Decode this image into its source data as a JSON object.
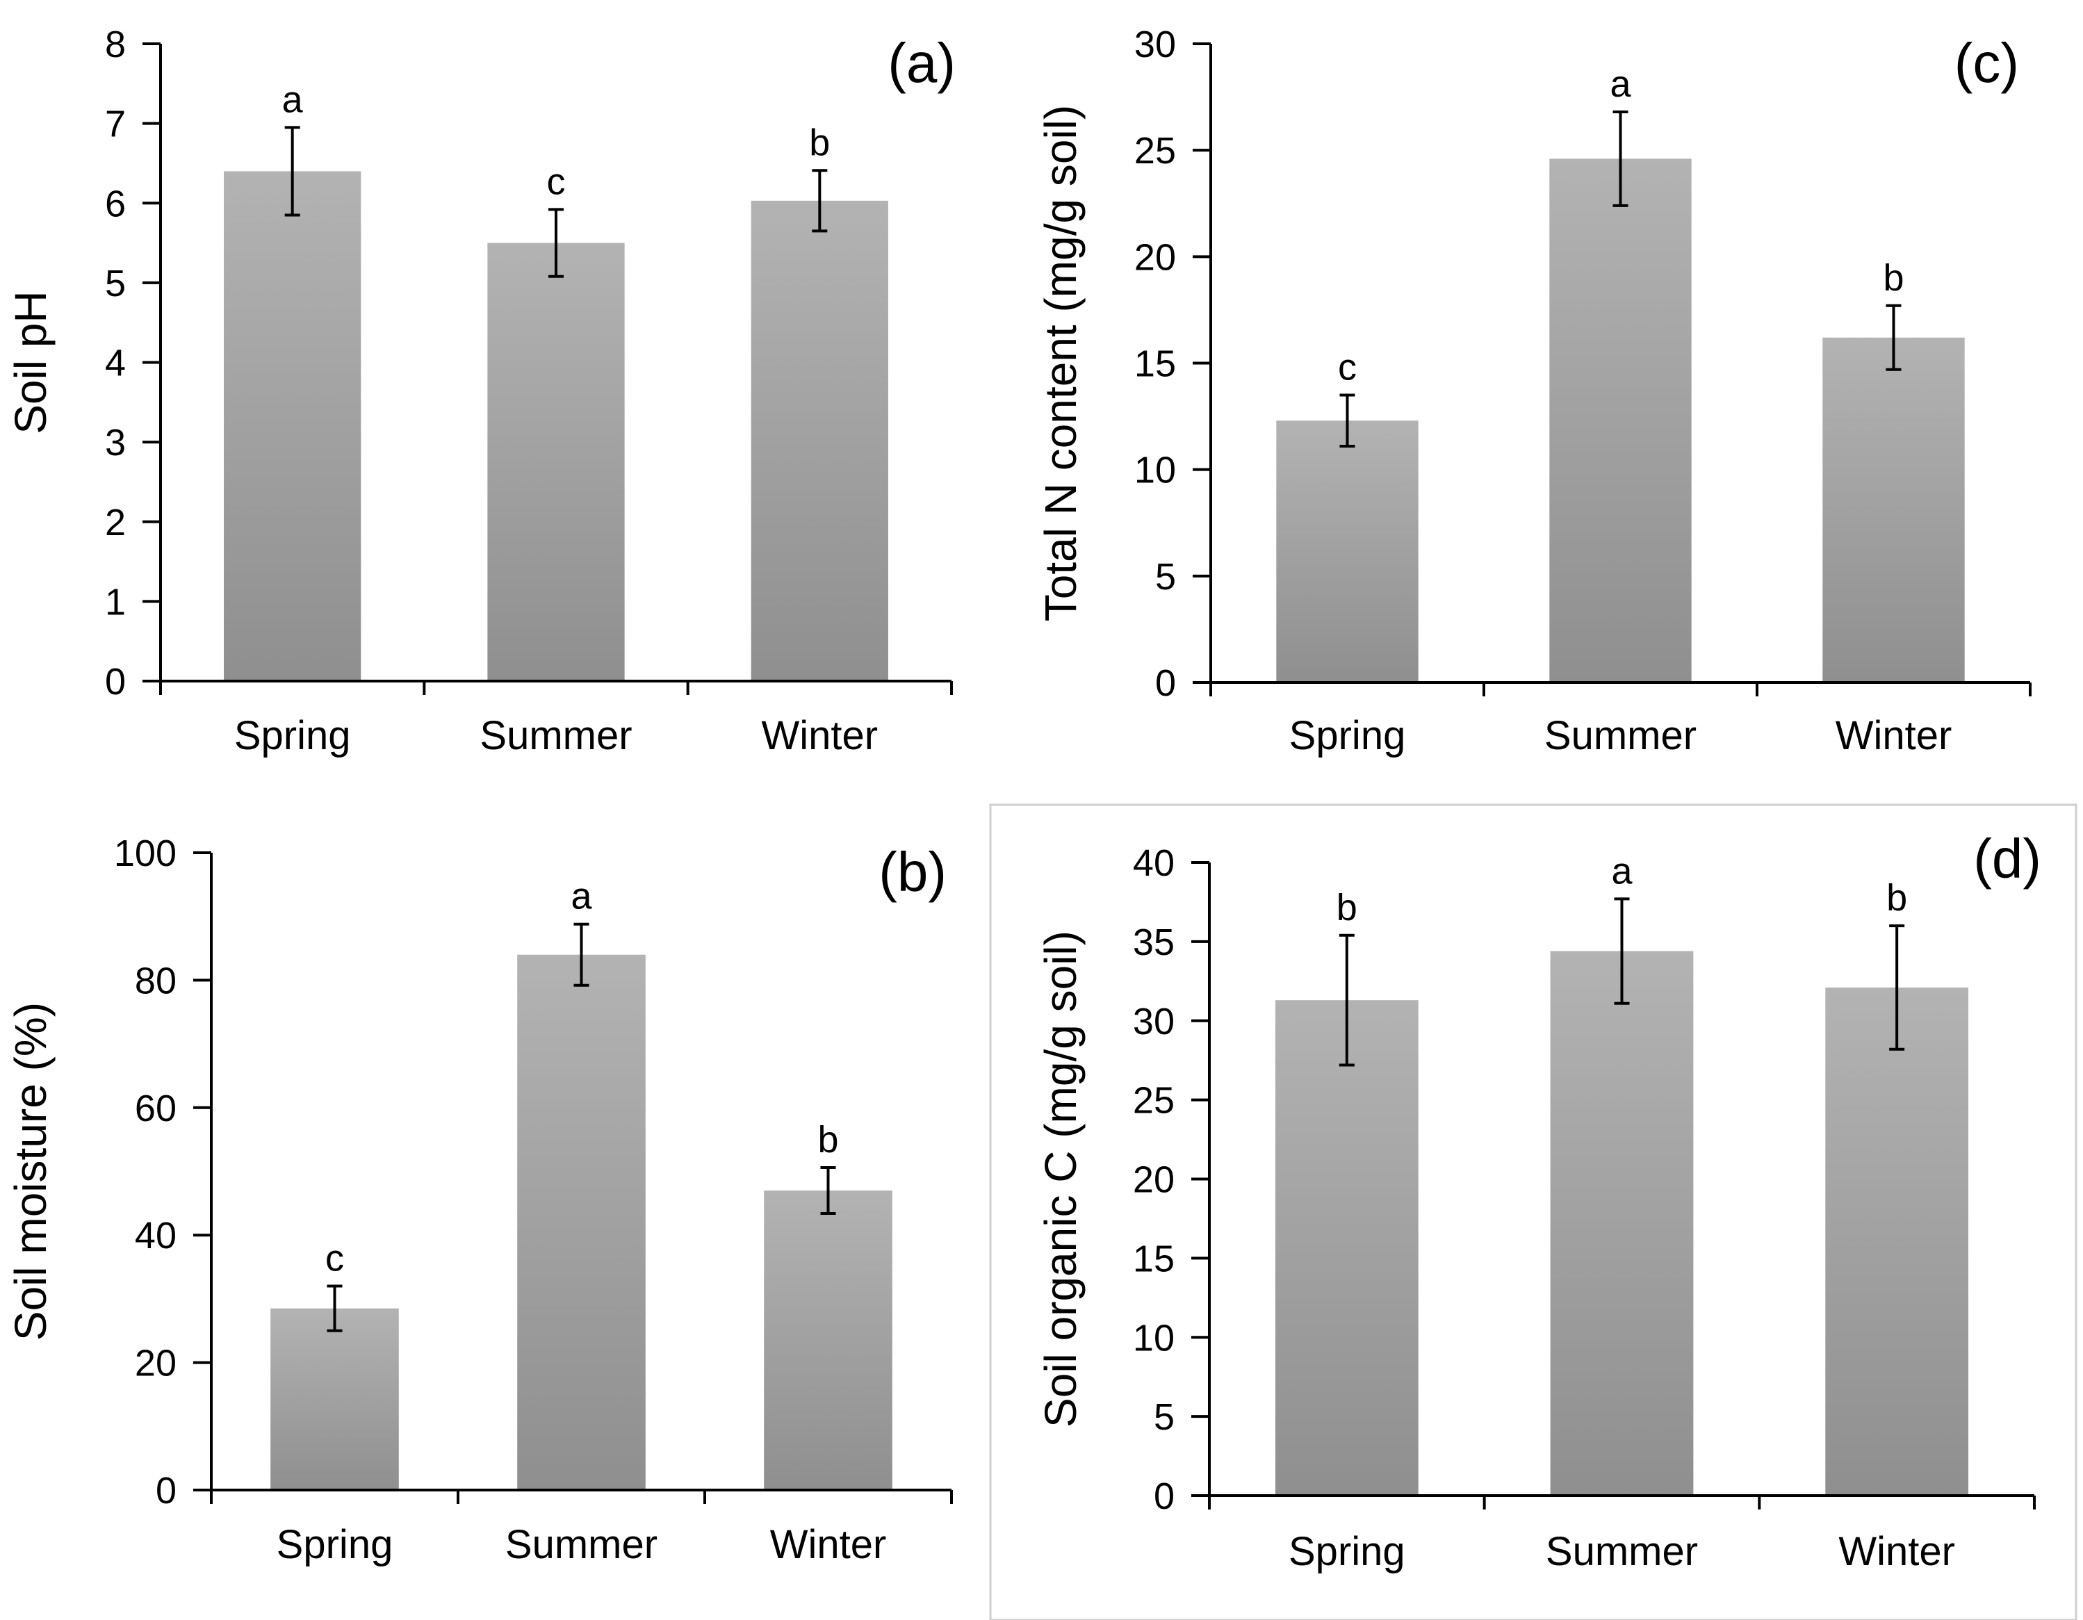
{
  "figure": {
    "background": "#ffffff",
    "bar_color_top": "#b3b3b3",
    "bar_color_bottom": "#8f8f8f",
    "axis_color": "#000000"
  },
  "chart_data": [
    {
      "id": "a",
      "type": "bar",
      "panel_label": "(a)",
      "categories": [
        "Spring",
        "Summer",
        "Winter"
      ],
      "values": [
        6.4,
        5.5,
        6.03
      ],
      "error": [
        0.55,
        0.42,
        0.38
      ],
      "significance": [
        "a",
        "c",
        "b"
      ],
      "ylabel": "Soil pH",
      "xlabel": "",
      "ylim": [
        0,
        8
      ],
      "yticks": [
        0,
        1,
        2,
        3,
        4,
        5,
        6,
        7,
        8
      ],
      "grid": false,
      "legend": "none"
    },
    {
      "id": "c",
      "type": "bar",
      "panel_label": "(c)",
      "categories": [
        "Spring",
        "Summer",
        "Winter"
      ],
      "values": [
        12.3,
        24.6,
        16.2
      ],
      "error": [
        1.2,
        2.2,
        1.5
      ],
      "significance": [
        "c",
        "a",
        "b"
      ],
      "ylabel": "Total N content (mg/g soil)",
      "xlabel": "",
      "ylim": [
        0,
        30
      ],
      "yticks": [
        0,
        5,
        10,
        15,
        20,
        25,
        30
      ],
      "grid": false,
      "legend": "none"
    },
    {
      "id": "b",
      "type": "bar",
      "panel_label": "(b)",
      "categories": [
        "Spring",
        "Summer",
        "Winter"
      ],
      "values": [
        28.5,
        84.0,
        47.0
      ],
      "error": [
        3.5,
        4.8,
        3.6
      ],
      "significance": [
        "c",
        "a",
        "b"
      ],
      "ylabel": "Soil moisture (%)",
      "xlabel": "",
      "ylim": [
        0,
        100
      ],
      "yticks": [
        0,
        20,
        40,
        60,
        80,
        100
      ],
      "grid": false,
      "legend": "none"
    },
    {
      "id": "d",
      "type": "bar",
      "panel_label": "(d)",
      "categories": [
        "Spring",
        "Summer",
        "Winter"
      ],
      "values": [
        31.3,
        34.4,
        32.1
      ],
      "error": [
        4.1,
        3.3,
        3.9
      ],
      "significance": [
        "b",
        "a",
        "b"
      ],
      "ylabel": "Soil organic C (mg/g soil)",
      "xlabel": "",
      "ylim": [
        0,
        40
      ],
      "yticks": [
        0,
        5,
        10,
        15,
        20,
        25,
        30,
        35,
        40
      ],
      "grid": false,
      "legend": "none"
    }
  ]
}
